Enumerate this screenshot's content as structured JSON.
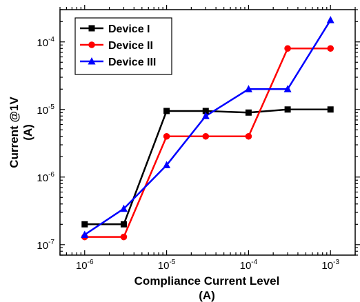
{
  "chart_data": {
    "type": "line",
    "x": [
      1e-06,
      3e-06,
      1e-05,
      3e-05,
      0.0001,
      0.0003,
      0.001
    ],
    "x_ticks": [
      {
        "value": 1e-06,
        "base": "10",
        "exp": "-6"
      },
      {
        "value": 1e-05,
        "base": "10",
        "exp": "-5"
      },
      {
        "value": 0.0001,
        "base": "10",
        "exp": "-4"
      },
      {
        "value": 0.001,
        "base": "10",
        "exp": "-3"
      }
    ],
    "y_ticks": [
      {
        "value": 1e-07,
        "base": "10",
        "exp": "-7"
      },
      {
        "value": 1e-06,
        "base": "10",
        "exp": "-6"
      },
      {
        "value": 1e-05,
        "base": "10",
        "exp": "-5"
      },
      {
        "value": 0.0001,
        "base": "10",
        "exp": "-4"
      }
    ],
    "xlabel_line1": "Compliance Current Level",
    "xlabel_line2": "(A)",
    "ylabel_line1": "Current @1V",
    "ylabel_line2": "(A)",
    "xscale": "log",
    "yscale": "log",
    "xlim": [
      5e-07,
      0.002
    ],
    "ylim": [
      7e-08,
      0.0003
    ],
    "grid": false,
    "legend_position": "top-left",
    "series": [
      {
        "name": "Device I",
        "color": "#000000",
        "marker": "square",
        "values": [
          2e-07,
          2e-07,
          9.5e-06,
          9.5e-06,
          9e-06,
          1e-05,
          1e-05
        ]
      },
      {
        "name": "Device II",
        "color": "#ff0000",
        "marker": "circle",
        "values": [
          1.3e-07,
          1.3e-07,
          4e-06,
          4e-06,
          4e-06,
          8e-05,
          8e-05
        ]
      },
      {
        "name": "Device III",
        "color": "#0000ff",
        "marker": "triangle",
        "values": [
          1.4e-07,
          3.4e-07,
          1.5e-06,
          8e-06,
          2e-05,
          2e-05,
          0.00021
        ]
      }
    ]
  }
}
